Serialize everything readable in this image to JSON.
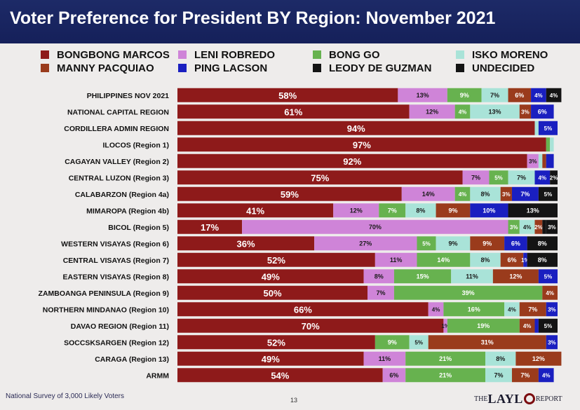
{
  "header": {
    "title": "Voter Preference for President BY Region: November 2021"
  },
  "footer": {
    "source": "National Survey of 3,000 Likely Voters",
    "page": "13",
    "logo_prefix": "THE",
    "logo_main": "LAYL",
    "logo_suffix": "REPORT"
  },
  "chart_data": {
    "type": "bar",
    "orientation": "horizontal",
    "stacked": true,
    "title": "Voter Preference for President BY Region: November 2021",
    "xlim": [
      0,
      100
    ],
    "legend_position": "top",
    "series": [
      {
        "name": "BONGBONG MARCOS",
        "color": "#8e1a1a",
        "label_color": "#ffffff"
      },
      {
        "name": "LENI ROBREDO",
        "color": "#cf84d8",
        "label_color": "#1a1a1a"
      },
      {
        "name": "BONG GO",
        "color": "#67b24f",
        "label_color": "#ffffff"
      },
      {
        "name": "ISKO MORENO",
        "color": "#a9e3d8",
        "label_color": "#1a1a1a"
      },
      {
        "name": "MANNY PACQUIAO",
        "color": "#9a3b1c",
        "label_color": "#ffffff"
      },
      {
        "name": "PING LACSON",
        "color": "#1a1fc0",
        "label_color": "#ffffff"
      },
      {
        "name": "LEODY DE GUZMAN",
        "color": "#141414",
        "label_color": "#ffffff"
      },
      {
        "name": "UNDECIDED",
        "color": "#141414",
        "label_color": "#ffffff"
      }
    ],
    "rows": [
      {
        "region": "PHILIPPINES NOV 2021",
        "segments": [
          {
            "s": 0,
            "v": 58,
            "label": "58%"
          },
          {
            "s": 1,
            "v": 13,
            "label": "13%"
          },
          {
            "s": 2,
            "v": 9,
            "label": "9%"
          },
          {
            "s": 3,
            "v": 7,
            "label": "7%"
          },
          {
            "s": 4,
            "v": 6,
            "label": "6%"
          },
          {
            "s": 5,
            "v": 4,
            "label": "4%"
          },
          {
            "s": 7,
            "v": 4,
            "label": "4%"
          }
        ]
      },
      {
        "region": "NATIONAL CAPITAL REGION",
        "segments": [
          {
            "s": 0,
            "v": 61,
            "label": "61%"
          },
          {
            "s": 1,
            "v": 12,
            "label": "12%"
          },
          {
            "s": 2,
            "v": 4,
            "label": "4%"
          },
          {
            "s": 3,
            "v": 13,
            "label": "13%"
          },
          {
            "s": 4,
            "v": 3,
            "label": "3%"
          },
          {
            "s": 5,
            "v": 6,
            "label": "6%"
          }
        ]
      },
      {
        "region": "CORDILLERA ADMIN REGION",
        "segments": [
          {
            "s": 0,
            "v": 94,
            "label": "94%"
          },
          {
            "s": 3,
            "v": 1,
            "label": ""
          },
          {
            "s": 5,
            "v": 5,
            "label": "5%"
          }
        ]
      },
      {
        "region": "ILOCOS (Region 1)",
        "segments": [
          {
            "s": 0,
            "v": 97,
            "label": "97%"
          },
          {
            "s": 2,
            "v": 1,
            "label": ""
          },
          {
            "s": 3,
            "v": 1,
            "label": ""
          }
        ]
      },
      {
        "region": "CAGAYAN VALLEY (Region 2)",
        "segments": [
          {
            "s": 0,
            "v": 92,
            "label": "92%"
          },
          {
            "s": 1,
            "v": 3,
            "label": "3%"
          },
          {
            "s": 3,
            "v": 1,
            "label": ""
          },
          {
            "s": 4,
            "v": 1,
            "label": ""
          },
          {
            "s": 5,
            "v": 2,
            "label": ""
          }
        ]
      },
      {
        "region": "CENTRAL LUZON (Region 3)",
        "segments": [
          {
            "s": 0,
            "v": 75,
            "label": "75%"
          },
          {
            "s": 1,
            "v": 7,
            "label": "7%"
          },
          {
            "s": 2,
            "v": 5,
            "label": "5%"
          },
          {
            "s": 3,
            "v": 7,
            "label": "7%"
          },
          {
            "s": 5,
            "v": 4,
            "label": "4%"
          },
          {
            "s": 7,
            "v": 2,
            "label": "2%"
          }
        ]
      },
      {
        "region": "CALABARZON (Region 4a)",
        "segments": [
          {
            "s": 0,
            "v": 59,
            "label": "59%"
          },
          {
            "s": 1,
            "v": 14,
            "label": "14%"
          },
          {
            "s": 2,
            "v": 4,
            "label": "4%"
          },
          {
            "s": 3,
            "v": 8,
            "label": "8%"
          },
          {
            "s": 4,
            "v": 3,
            "label": "3%"
          },
          {
            "s": 5,
            "v": 7,
            "label": "7%"
          },
          {
            "s": 7,
            "v": 5,
            "label": "5%"
          }
        ]
      },
      {
        "region": "MIMAROPA (Region 4b)",
        "segments": [
          {
            "s": 0,
            "v": 41,
            "label": "41%"
          },
          {
            "s": 1,
            "v": 12,
            "label": "12%"
          },
          {
            "s": 2,
            "v": 7,
            "label": "7%"
          },
          {
            "s": 3,
            "v": 8,
            "label": "8%"
          },
          {
            "s": 4,
            "v": 9,
            "label": "9%"
          },
          {
            "s": 5,
            "v": 10,
            "label": "10%"
          },
          {
            "s": 7,
            "v": 13,
            "label": "13%"
          }
        ]
      },
      {
        "region": "BICOL (Region 5)",
        "segments": [
          {
            "s": 0,
            "v": 17,
            "label": "17%"
          },
          {
            "s": 1,
            "v": 70,
            "label": "70%"
          },
          {
            "s": 2,
            "v": 3,
            "label": "3%"
          },
          {
            "s": 3,
            "v": 4,
            "label": "4%"
          },
          {
            "s": 4,
            "v": 2,
            "label": "2%"
          },
          {
            "s": 6,
            "v": 1,
            "label": ""
          },
          {
            "s": 7,
            "v": 3,
            "label": "3%"
          }
        ]
      },
      {
        "region": "WESTERN VISAYAS (Region 6)",
        "segments": [
          {
            "s": 0,
            "v": 36,
            "label": "36%"
          },
          {
            "s": 1,
            "v": 27,
            "label": "27%"
          },
          {
            "s": 2,
            "v": 5,
            "label": "5%"
          },
          {
            "s": 3,
            "v": 9,
            "label": "9%"
          },
          {
            "s": 4,
            "v": 9,
            "label": "9%"
          },
          {
            "s": 5,
            "v": 6,
            "label": "6%"
          },
          {
            "s": 7,
            "v": 8,
            "label": "8%"
          }
        ]
      },
      {
        "region": "CENTRAL VISAYAS (Region 7)",
        "segments": [
          {
            "s": 0,
            "v": 52,
            "label": "52%"
          },
          {
            "s": 1,
            "v": 11,
            "label": "11%"
          },
          {
            "s": 2,
            "v": 14,
            "label": "14%"
          },
          {
            "s": 3,
            "v": 8,
            "label": "8%"
          },
          {
            "s": 4,
            "v": 6,
            "label": "6%"
          },
          {
            "s": 5,
            "v": 1,
            "label": "1%"
          },
          {
            "s": 7,
            "v": 8,
            "label": "8%"
          }
        ]
      },
      {
        "region": "EASTERN VISAYAS (Region 8)",
        "segments": [
          {
            "s": 0,
            "v": 49,
            "label": "49%"
          },
          {
            "s": 1,
            "v": 8,
            "label": "8%"
          },
          {
            "s": 2,
            "v": 15,
            "label": "15%"
          },
          {
            "s": 3,
            "v": 11,
            "label": "11%"
          },
          {
            "s": 4,
            "v": 12,
            "label": "12%"
          },
          {
            "s": 5,
            "v": 5,
            "label": "5%"
          }
        ]
      },
      {
        "region": "ZAMBOANGA PENINSULA (Region 9)",
        "segments": [
          {
            "s": 0,
            "v": 50,
            "label": "50%"
          },
          {
            "s": 1,
            "v": 7,
            "label": "7%"
          },
          {
            "s": 2,
            "v": 39,
            "label": "39%"
          },
          {
            "s": 4,
            "v": 4,
            "label": "4%"
          }
        ]
      },
      {
        "region": "NORTHERN MINDANAO (Region 10)",
        "segments": [
          {
            "s": 0,
            "v": 66,
            "label": "66%"
          },
          {
            "s": 1,
            "v": 4,
            "label": "4%"
          },
          {
            "s": 2,
            "v": 16,
            "label": "16%"
          },
          {
            "s": 3,
            "v": 4,
            "label": "4%"
          },
          {
            "s": 4,
            "v": 7,
            "label": "7%"
          },
          {
            "s": 5,
            "v": 3,
            "label": "3%"
          }
        ]
      },
      {
        "region": "DAVAO REGION (Region 11)",
        "segments": [
          {
            "s": 0,
            "v": 70,
            "label": "70%"
          },
          {
            "s": 1,
            "v": 1,
            "label": "1%"
          },
          {
            "s": 2,
            "v": 19,
            "label": "19%"
          },
          {
            "s": 4,
            "v": 4,
            "label": "4%"
          },
          {
            "s": 5,
            "v": 1,
            "label": ""
          },
          {
            "s": 7,
            "v": 5,
            "label": "5%"
          }
        ]
      },
      {
        "region": "SOCCSKSARGEN (Region 12)",
        "segments": [
          {
            "s": 0,
            "v": 52,
            "label": "52%"
          },
          {
            "s": 2,
            "v": 9,
            "label": "9%"
          },
          {
            "s": 3,
            "v": 5,
            "label": "5%"
          },
          {
            "s": 4,
            "v": 31,
            "label": "31%"
          },
          {
            "s": 5,
            "v": 3,
            "label": "3%"
          }
        ]
      },
      {
        "region": "CARAGA (Region 13)",
        "segments": [
          {
            "s": 0,
            "v": 49,
            "label": "49%"
          },
          {
            "s": 1,
            "v": 11,
            "label": "11%"
          },
          {
            "s": 2,
            "v": 21,
            "label": "21%"
          },
          {
            "s": 3,
            "v": 8,
            "label": "8%"
          },
          {
            "s": 4,
            "v": 12,
            "label": "12%"
          }
        ]
      },
      {
        "region": "ARMM",
        "segments": [
          {
            "s": 0,
            "v": 54,
            "label": "54%"
          },
          {
            "s": 1,
            "v": 6,
            "label": "6%"
          },
          {
            "s": 2,
            "v": 21,
            "label": "21%"
          },
          {
            "s": 3,
            "v": 7,
            "label": "7%"
          },
          {
            "s": 4,
            "v": 7,
            "label": "7%"
          },
          {
            "s": 5,
            "v": 4,
            "label": "4%"
          }
        ]
      }
    ]
  }
}
